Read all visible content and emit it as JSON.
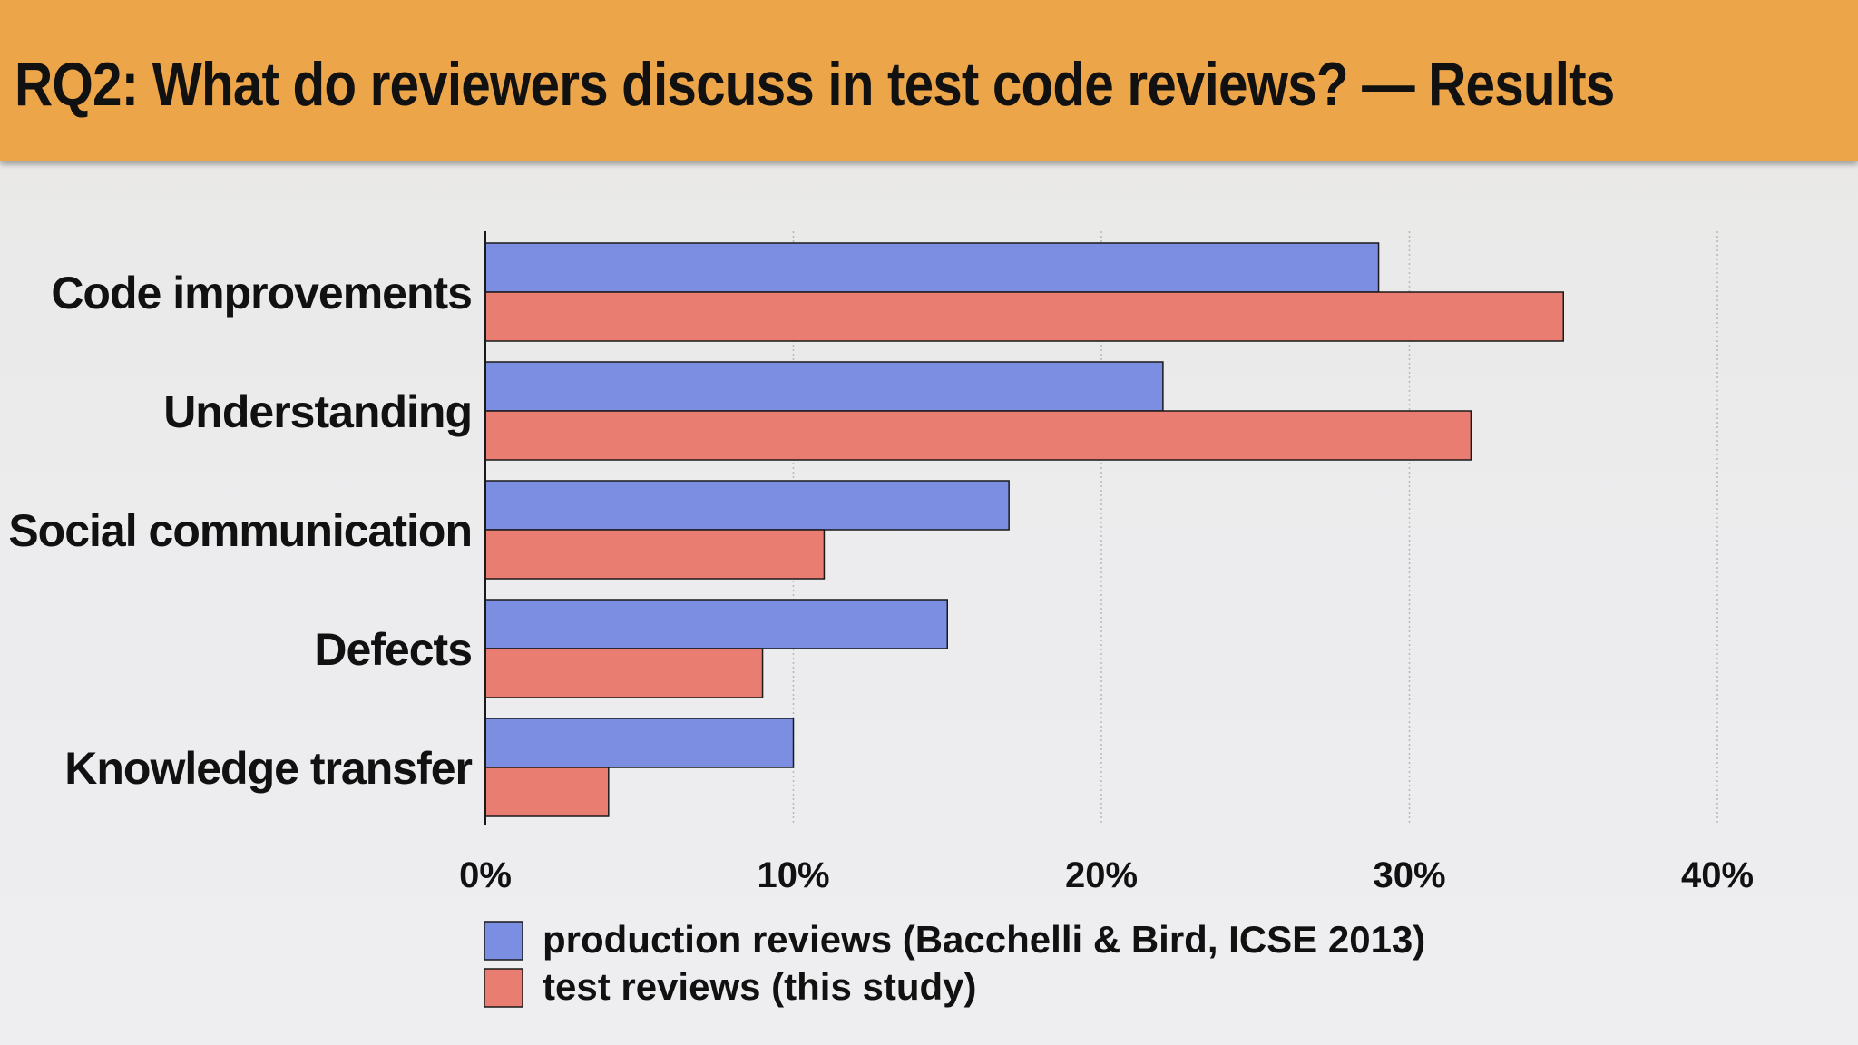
{
  "slide": {
    "title": "RQ2: What do reviewers discuss in test code reviews? — Results"
  },
  "chart_data": {
    "type": "bar",
    "orientation": "horizontal",
    "title": "",
    "xlabel": "",
    "ylabel": "",
    "categories": [
      "Code improvements",
      "Understanding",
      "Social communication",
      "Defects",
      "Knowledge transfer"
    ],
    "series": [
      {
        "name": "production reviews (Bacchelli & Bird, ICSE 2013)",
        "color": "#7b8ee2",
        "values": [
          29,
          22,
          17,
          15,
          10
        ]
      },
      {
        "name": "test reviews (this study)",
        "color": "#e97d72",
        "values": [
          35,
          32,
          11,
          9,
          4
        ]
      }
    ],
    "xlim": [
      0,
      40
    ],
    "xticks": [
      0,
      10,
      20,
      30,
      40
    ],
    "xtick_labels": [
      "0%",
      "10%",
      "20%",
      "30%",
      "40%"
    ],
    "grid": "vertical dotted",
    "legend_position": "bottom-left"
  }
}
